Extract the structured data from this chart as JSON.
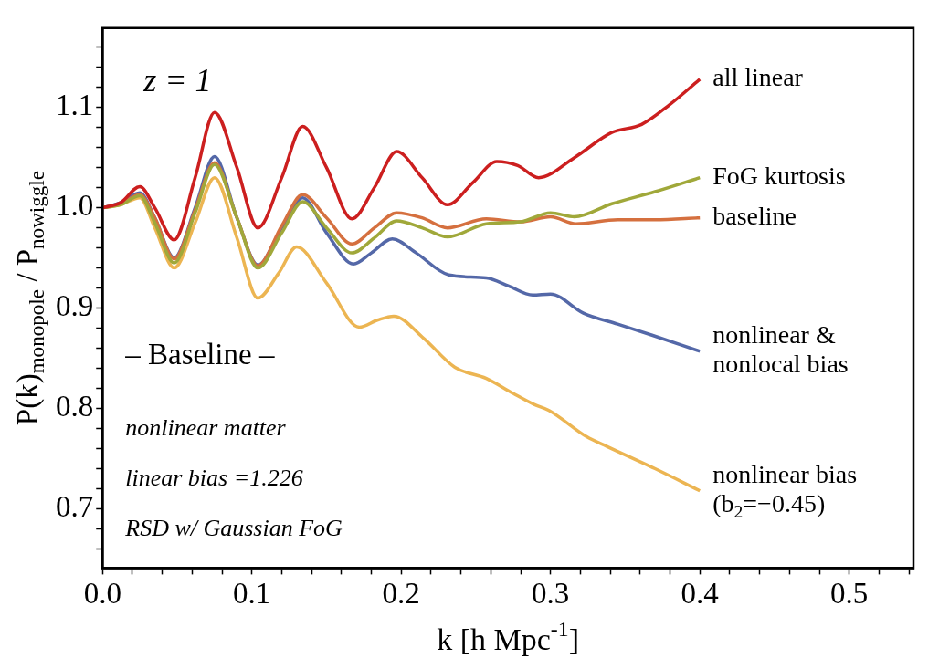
{
  "chart_data": {
    "type": "line",
    "xlabel": "k [h Mpc$^{-1}$]",
    "ylabel": "P(k)$_{monopole}$ / P$_{nowiggle}$",
    "annotations": [
      "z = 1",
      "– Baseline –",
      "nonlinear matter",
      "linear bias =1.226",
      "RSD w/ Gaussian FoG"
    ],
    "xlim": [
      0,
      0.543
    ],
    "ylim": [
      0.641,
      1.179
    ],
    "xticks": [
      {
        "value": 0,
        "label": "0.0"
      },
      {
        "value": 0.02,
        "label": null
      },
      {
        "value": 0.04,
        "label": null
      },
      {
        "value": 0.06,
        "label": null
      },
      {
        "value": 0.08,
        "label": null
      },
      0.1,
      {
        "value": 0.12,
        "label": null
      },
      {
        "value": 0.14,
        "label": null
      },
      {
        "value": 0.16,
        "label": null
      },
      {
        "value": 0.18,
        "label": null
      },
      0.2,
      {
        "value": 0.22,
        "label": null
      },
      {
        "value": 0.24,
        "label": null
      },
      {
        "value": 0.26,
        "label": null
      },
      {
        "value": 0.28,
        "label": null
      },
      0.3,
      {
        "value": 0.32,
        "label": null
      },
      {
        "value": 0.34,
        "label": null
      },
      {
        "value": 0.36,
        "label": null
      },
      {
        "value": 0.38,
        "label": null
      },
      0.4,
      {
        "value": 0.42,
        "label": null
      },
      {
        "value": 0.44,
        "label": null
      },
      {
        "value": 0.46,
        "label": null
      },
      {
        "value": 0.48,
        "label": null
      },
      0.5,
      {
        "value": 0.52,
        "label": null
      },
      {
        "value": 0.54,
        "label": null
      }
    ],
    "yticks": [
      {
        "value": 0.66,
        "label": null
      },
      {
        "value": 0.68,
        "label": null
      },
      0.7,
      {
        "value": 0.72,
        "label": null
      },
      {
        "value": 0.74,
        "label": null
      },
      {
        "value": 0.76,
        "label": null
      },
      {
        "value": 0.78,
        "label": null
      },
      0.8,
      {
        "value": 0.82,
        "label": null
      },
      {
        "value": 0.84,
        "label": null
      },
      {
        "value": 0.86,
        "label": null
      },
      {
        "value": 0.88,
        "label": null
      },
      0.9,
      {
        "value": 0.92,
        "label": null
      },
      {
        "value": 0.94,
        "label": null
      },
      {
        "value": 0.96,
        "label": null
      },
      {
        "value": 0.98,
        "label": null
      },
      {
        "value": 1.0,
        "label": "1.0"
      },
      {
        "value": 1.02,
        "label": null
      },
      {
        "value": 1.04,
        "label": null
      },
      {
        "value": 1.06,
        "label": null
      },
      {
        "value": 1.08,
        "label": null
      },
      1.1,
      {
        "value": 1.12,
        "label": null
      },
      {
        "value": 1.14,
        "label": null
      },
      {
        "value": 1.16,
        "label": null
      }
    ],
    "grid": false,
    "legend": false,
    "marker": "none",
    "line_style": "solid",
    "series": [
      {
        "name": "all linear",
        "color": "#cc1f1f",
        "x": [
          0,
          0.012,
          0.025,
          0.035,
          0.048,
          0.062,
          0.075,
          0.09,
          0.104,
          0.12,
          0.134,
          0.15,
          0.167,
          0.182,
          0.197,
          0.214,
          0.231,
          0.248,
          0.264,
          0.278,
          0.292,
          0.316,
          0.341,
          0.361,
          0.38,
          0.4
        ],
        "values": [
          1.0,
          1.005,
          1.021,
          1.0,
          0.968,
          1.03,
          1.095,
          1.04,
          0.98,
          1.03,
          1.081,
          1.04,
          0.989,
          1.02,
          1.056,
          1.03,
          1.003,
          1.025,
          1.046,
          1.042,
          1.03,
          1.05,
          1.075,
          1.083,
          1.103,
          1.128
        ]
      },
      {
        "name": "FoG kurtosis",
        "color": "#a0a83a",
        "x": [
          0,
          0.012,
          0.025,
          0.035,
          0.048,
          0.062,
          0.075,
          0.09,
          0.104,
          0.12,
          0.134,
          0.15,
          0.167,
          0.182,
          0.197,
          0.214,
          0.231,
          0.257,
          0.28,
          0.3,
          0.316,
          0.341,
          0.37,
          0.4
        ],
        "values": [
          1.0,
          1.003,
          1.012,
          0.985,
          0.945,
          0.995,
          1.043,
          0.99,
          0.94,
          0.975,
          1.006,
          0.98,
          0.955,
          0.97,
          0.987,
          0.98,
          0.971,
          0.984,
          0.986,
          0.995,
          0.991,
          1.004,
          1.016,
          1.03
        ]
      },
      {
        "name": "baseline",
        "color": "#d5703f",
        "x": [
          0,
          0.012,
          0.025,
          0.035,
          0.048,
          0.062,
          0.075,
          0.09,
          0.104,
          0.12,
          0.134,
          0.15,
          0.167,
          0.182,
          0.197,
          0.214,
          0.231,
          0.257,
          0.28,
          0.3,
          0.317,
          0.345,
          0.37,
          0.4
        ],
        "values": [
          1.0,
          1.004,
          1.013,
          0.99,
          0.949,
          0.998,
          1.045,
          0.99,
          0.942,
          0.982,
          1.013,
          0.99,
          0.964,
          0.98,
          0.995,
          0.99,
          0.98,
          0.989,
          0.986,
          0.991,
          0.984,
          0.988,
          0.988,
          0.99
        ]
      },
      {
        "name": "nonlinear & nonlocal bias",
        "color": "#5468a8",
        "x": [
          0,
          0.012,
          0.025,
          0.035,
          0.048,
          0.062,
          0.075,
          0.09,
          0.104,
          0.12,
          0.134,
          0.15,
          0.168,
          0.18,
          0.194,
          0.21,
          0.232,
          0.257,
          0.272,
          0.288,
          0.3,
          0.322,
          0.345,
          0.368,
          0.4
        ],
        "values": [
          1.0,
          1.005,
          1.015,
          0.99,
          0.95,
          1.0,
          1.051,
          0.99,
          0.943,
          0.98,
          1.01,
          0.975,
          0.944,
          0.955,
          0.969,
          0.955,
          0.933,
          0.93,
          0.922,
          0.913,
          0.914,
          0.895,
          0.884,
          0.873,
          0.857
        ]
      },
      {
        "name": "nonlinear bias (b$_{2}$=−0.45)",
        "color": "#ecb552",
        "x": [
          0,
          0.012,
          0.025,
          0.035,
          0.048,
          0.062,
          0.075,
          0.09,
          0.104,
          0.118,
          0.13,
          0.15,
          0.172,
          0.184,
          0.195,
          0.215,
          0.236,
          0.257,
          0.275,
          0.289,
          0.299,
          0.324,
          0.338,
          0.37,
          0.4
        ],
        "values": [
          1.0,
          1.003,
          1.01,
          0.98,
          0.94,
          0.985,
          1.03,
          0.97,
          0.91,
          0.935,
          0.961,
          0.925,
          0.881,
          0.888,
          0.892,
          0.87,
          0.841,
          0.83,
          0.815,
          0.804,
          0.798,
          0.772,
          0.762,
          0.74,
          0.718
        ]
      }
    ]
  }
}
